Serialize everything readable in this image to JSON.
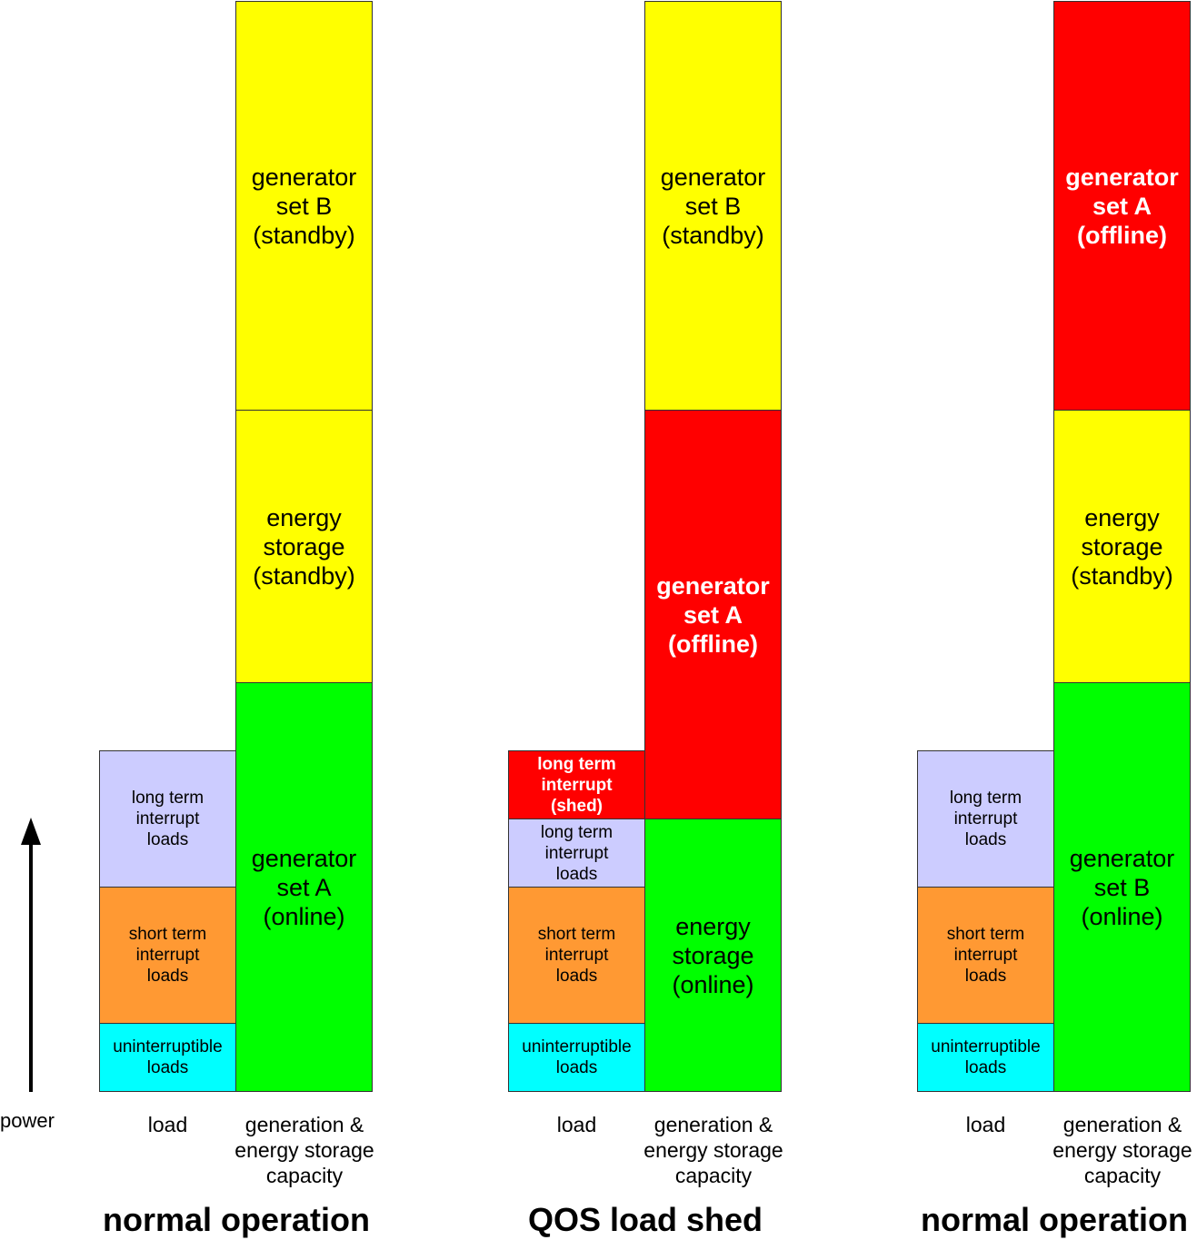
{
  "axis": {
    "label": "power",
    "arrow_icon": "up-arrow-icon"
  },
  "colors": {
    "uninterruptible": "#00ffff",
    "short_term": "#ff9933",
    "long_term": "#ccccff",
    "shed": "#ff0000",
    "online": "#00ff00",
    "standby": "#ffff00",
    "offline": "#ff0000"
  },
  "scenarios": [
    {
      "title": "normal operation",
      "load_label": "load",
      "capacity_label": "generation &\nenergy storage\ncapacity",
      "load_blocks": [
        {
          "label": "uninterruptible\nloads"
        },
        {
          "label": "short term\ninterrupt\nloads"
        },
        {
          "label": "long term\ninterrupt\nloads"
        }
      ],
      "capacity_blocks": [
        {
          "label": "generator\nset A\n(online)"
        },
        {
          "label": "energy\nstorage\n(standby)"
        },
        {
          "label": "generator\nset B\n(standby)"
        }
      ]
    },
    {
      "title": "QOS load shed",
      "load_label": "load",
      "capacity_label": "generation &\nenergy storage\ncapacity",
      "load_blocks": [
        {
          "label": "uninterruptible\nloads"
        },
        {
          "label": "short term\ninterrupt\nloads"
        },
        {
          "label": "long term\ninterrupt\nloads"
        },
        {
          "label": "long term\ninterrupt\n(shed)"
        }
      ],
      "capacity_blocks": [
        {
          "label": "energy\nstorage\n(online)"
        },
        {
          "label": "generator\nset A\n(offline)"
        },
        {
          "label": "generator\nset B\n(standby)"
        }
      ]
    },
    {
      "title": "normal operation",
      "load_label": "load",
      "capacity_label": "generation &\nenergy storage\ncapacity",
      "load_blocks": [
        {
          "label": "uninterruptible\nloads"
        },
        {
          "label": "short term\ninterrupt\nloads"
        },
        {
          "label": "long term\ninterrupt\nloads"
        }
      ],
      "capacity_blocks": [
        {
          "label": "generator\nset B\n(online)"
        },
        {
          "label": "energy\nstorage\n(standby)"
        },
        {
          "label": "generator\nset A\n(offline)"
        }
      ]
    }
  ]
}
